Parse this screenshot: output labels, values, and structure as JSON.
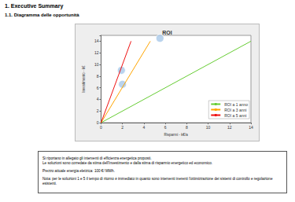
{
  "header": {
    "title": "1. Executive Summary",
    "subtitle": "1.1. Diagramma delle opportunità"
  },
  "chart_data": {
    "type": "line",
    "title": "ROI",
    "x_label": "Risparmi - k€/a",
    "y_label": "Investimento - k€",
    "xlim": [
      0,
      14
    ],
    "ylim": [
      0,
      15
    ],
    "xticks": [
      0,
      2,
      4,
      6,
      8,
      10,
      12,
      14
    ],
    "yticks": [
      0,
      2,
      4,
      6,
      8,
      10,
      12,
      14
    ],
    "grid": false,
    "legend": "lower right",
    "series": [
      {
        "name": "ROI a 1 anno",
        "color": "#66cc33",
        "x": [
          0,
          14
        ],
        "values": [
          0,
          14
        ]
      },
      {
        "name": "ROI a 3 anni",
        "color": "#ffa500",
        "x": [
          0,
          4.6
        ],
        "values": [
          0,
          14
        ]
      },
      {
        "name": "ROI a 5 anni",
        "color": "#ee1111",
        "x": [
          0,
          2.8
        ],
        "values": [
          0,
          14
        ]
      },
      {
        "type": "scatter",
        "marker": "circle",
        "color": "#a8c8e8",
        "x": [
          5.5,
          1.9,
          2
        ],
        "values": [
          14.5,
          9,
          6.6
        ]
      }
    ]
  },
  "note": {
    "paragraphs": [
      [
        "Si riportano in allegato gli interventi di efficienza energetica proposti.",
        "Le soluzioni sono corredate da stima dell'Investimento e dalla stima di risparmio energetico ed economico."
      ],
      [
        "Prezzo attuale energia elettrica: 100 €/ MWh."
      ],
      [
        "Nota: per le soluzioni 1 e 5 il tempo di ritorno è immediato in quanto sono interventi inerenti l'ottimizzazione dei sistemi di controllo e regolazione esistenti."
      ]
    ]
  }
}
